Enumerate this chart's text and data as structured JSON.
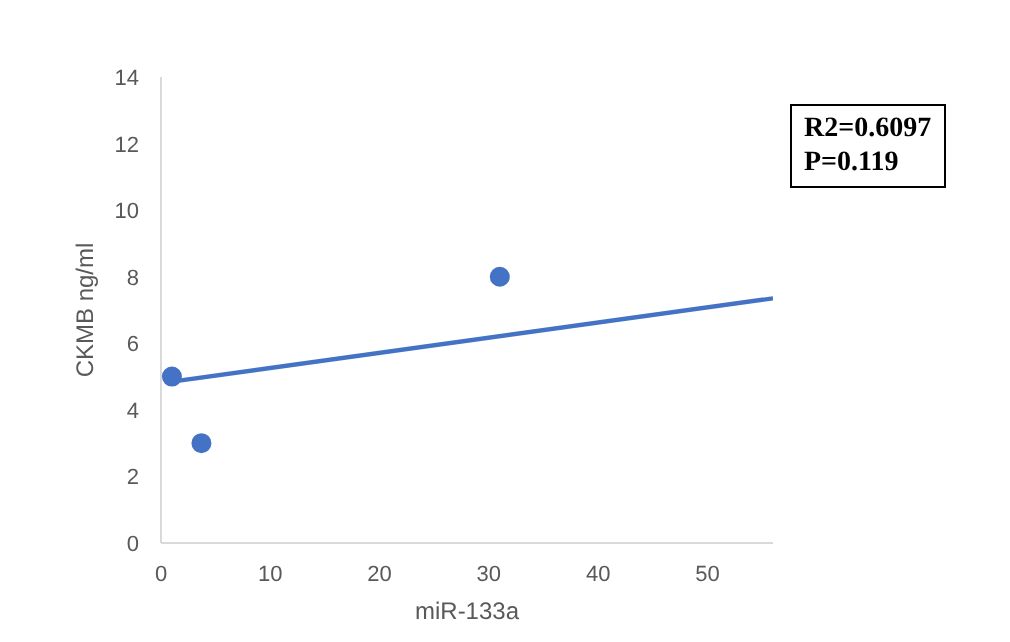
{
  "chart_data": {
    "type": "scatter",
    "xlabel": "miR-133a",
    "ylabel": "CKMB ng/ml",
    "annotations": [
      "R2=0.6097",
      "P=0.119"
    ],
    "series": [
      {
        "color": "#4472c4",
        "x": [
          1,
          3.7,
          31
        ],
        "values": [
          5,
          3,
          8
        ],
        "marker": "circle"
      },
      {
        "type": "line",
        "color": "#4472c4",
        "x": [
          1,
          56
        ],
        "values": [
          4.85,
          7.35
        ],
        "line_style": "solid"
      }
    ],
    "xlim": [
      0,
      56
    ],
    "xticks": [
      0,
      10,
      20,
      30,
      40,
      50
    ],
    "ylim": [
      0,
      14
    ],
    "yticks": [
      0,
      2,
      4,
      6,
      8,
      10,
      12,
      14
    ],
    "grid": false
  }
}
